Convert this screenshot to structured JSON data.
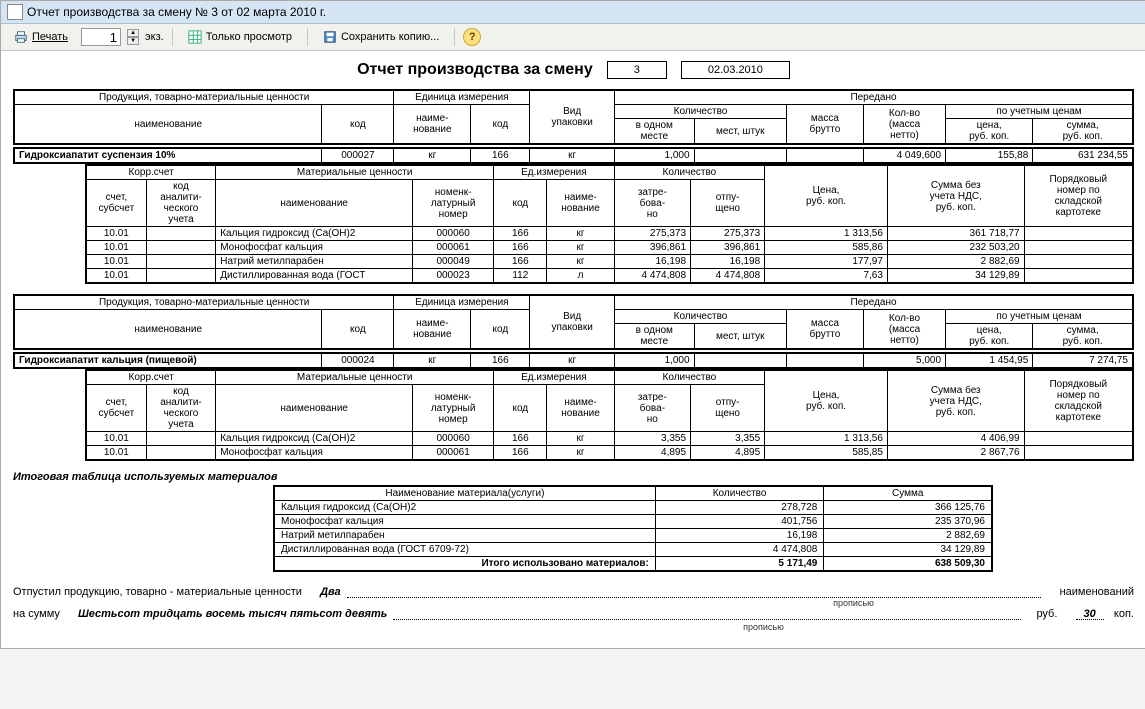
{
  "window": {
    "title": "Отчет производства за смену № 3 от 02 марта 2010 г."
  },
  "toolbar": {
    "print": "Печать",
    "copies_value": "1",
    "copies_label": "экз.",
    "view_only": "Только просмотр",
    "save_copy": "Сохранить копию..."
  },
  "report": {
    "title": "Отчет производства за смену",
    "number": "3",
    "date": "02.03.2010"
  },
  "hdr1": {
    "prod_tmv": "Продукция, товарно-материальные ценности",
    "name": "наименование",
    "code": "код",
    "unit_meas": "Единица измерения",
    "unit_name": "наиме-\nнование",
    "pkg_type": "Вид\nупаковки",
    "trans": "Передано",
    "qty": "Количество",
    "qty_one": "в одном\nместе",
    "qty_places": "мест, штук",
    "mass": "масса\nбрутто",
    "qty_net": "Кол-во\n(масса\nнетто)",
    "acc_prices": "по учетным ценам",
    "price": "цена,\nруб. коп.",
    "sum": "сумма,\nруб. коп."
  },
  "hdr2": {
    "korr": "Корр.счет",
    "acct": "счет,\nсубсчет",
    "anal": "код\nаналити-\nческого\nучета",
    "mat": "Материальные ценности",
    "name": "наименование",
    "nomno": "номенк-\nлатурный\nномер",
    "unit": "Ед.измерения",
    "code": "код",
    "uname": "наиме-\nнование",
    "qty": "Количество",
    "req": "затре-\nбова-\nно",
    "rel": "отпу-\nщено",
    "price": "Цена,\nруб. коп.",
    "sum_novat": "Сумма без\nучета НДС,\nруб. коп.",
    "ord": "Порядковый\nномер по\nскладской\nкартотеке"
  },
  "products": [
    {
      "name": "Гидроксиапатит суспензия 10%",
      "code": "000027",
      "unit_name": "кг",
      "unit_code": "166",
      "pkg": "кг",
      "in_one": "1,000",
      "places": "",
      "mass": "",
      "qty_net": "4 049,600",
      "price": "155,88",
      "sum": "631 234,55",
      "materials": [
        {
          "acct": "10.01",
          "anal": "",
          "name": "Кальция гидроксид (Ca(OH)2",
          "nom": "000060",
          "ucode": "166",
          "uname": "кг",
          "req": "275,373",
          "rel": "275,373",
          "price": "1 313,56",
          "sum": "361 718,77",
          "ord": ""
        },
        {
          "acct": "10.01",
          "anal": "",
          "name": "Монофосфат кальция",
          "nom": "000061",
          "ucode": "166",
          "uname": "кг",
          "req": "396,861",
          "rel": "396,861",
          "price": "585,86",
          "sum": "232 503,20",
          "ord": ""
        },
        {
          "acct": "10.01",
          "anal": "",
          "name": "Натрий метилпарабен",
          "nom": "000049",
          "ucode": "166",
          "uname": "кг",
          "req": "16,198",
          "rel": "16,198",
          "price": "177,97",
          "sum": "2 882,69",
          "ord": ""
        },
        {
          "acct": "10.01",
          "anal": "",
          "name": "Дистиллированная вода (ГОСТ",
          "nom": "000023",
          "ucode": "112",
          "uname": "л",
          "req": "4 474,808",
          "rel": "4 474,808",
          "price": "7,63",
          "sum": "34 129,89",
          "ord": ""
        }
      ]
    },
    {
      "name": "Гидроксиапатит кальция (пищевой)",
      "code": "000024",
      "unit_name": "кг",
      "unit_code": "166",
      "pkg": "кг",
      "in_one": "1,000",
      "places": "",
      "mass": "",
      "qty_net": "5,000",
      "price": "1 454,95",
      "sum": "7 274,75",
      "materials": [
        {
          "acct": "10.01",
          "anal": "",
          "name": "Кальция гидроксид (Ca(OH)2",
          "nom": "000060",
          "ucode": "166",
          "uname": "кг",
          "req": "3,355",
          "rel": "3,355",
          "price": "1 313,56",
          "sum": "4 406,99",
          "ord": ""
        },
        {
          "acct": "10.01",
          "anal": "",
          "name": "Монофосфат кальция",
          "nom": "000061",
          "ucode": "166",
          "uname": "кг",
          "req": "4,895",
          "rel": "4,895",
          "price": "585,85",
          "sum": "2 867,76",
          "ord": ""
        }
      ]
    }
  ],
  "totals": {
    "title": "Итоговая таблица используемых материалов",
    "h_name": "Наименование материала(услуги)",
    "h_qty": "Количество",
    "h_sum": "Сумма",
    "rows": [
      {
        "name": "Кальция гидроксид (Ca(OH)2",
        "qty": "278,728",
        "sum": "366 125,76"
      },
      {
        "name": "Монофосфат кальция",
        "qty": "401,756",
        "sum": "235 370,96"
      },
      {
        "name": "Натрий метилпарабен",
        "qty": "16,198",
        "sum": "2 882,69"
      },
      {
        "name": "Дистиллированная вода (ГОСТ 6709-72)",
        "qty": "4 474,808",
        "sum": "34 129,89"
      }
    ],
    "total_label": "Итого использовано материалов:",
    "total_qty": "5 171,49",
    "total_sum": "638 509,30"
  },
  "sign": {
    "released": "Отпустил продукцию, товарно - материальные ценности",
    "count_words": "Два",
    "names_label": "наименований",
    "on_sum": "на сумму",
    "sum_words": "Шестьсот тридцать восемь тысяч пятьсот девять",
    "rub": "руб.",
    "kop_val": "30",
    "kop": "коп.",
    "propisyu": "прописью"
  },
  "colors": {
    "titlebar": "#d6e5f3",
    "toolbar": "#f1f1ee"
  }
}
